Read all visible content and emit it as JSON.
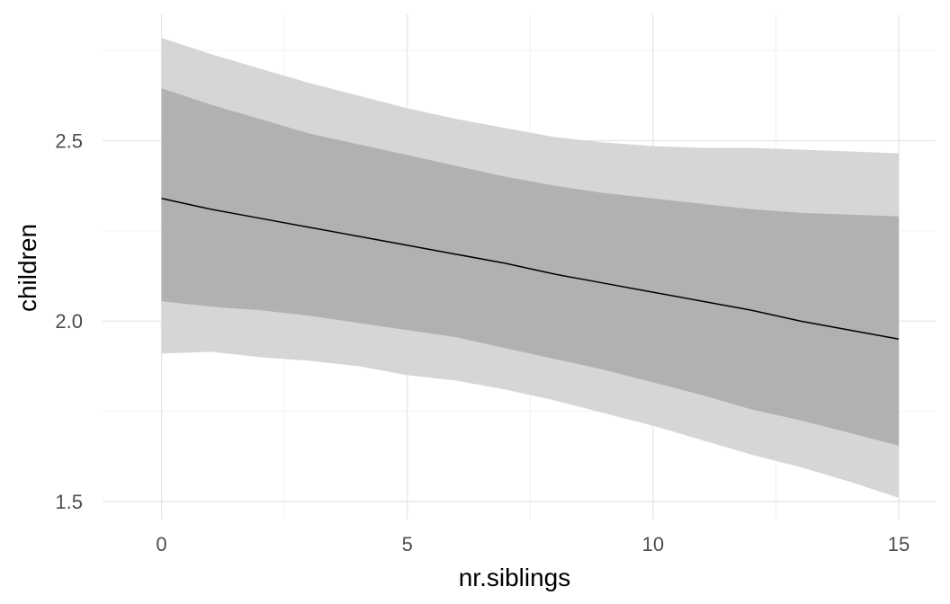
{
  "chart_data": {
    "type": "line",
    "xlabel": "nr.siblings",
    "ylabel": "children",
    "xlim": [
      -1.2,
      15.75
    ],
    "ylim": [
      1.45,
      2.85
    ],
    "x_ticks": [
      0,
      5,
      10,
      15
    ],
    "x_tick_labels": [
      "0",
      "5",
      "10",
      "15"
    ],
    "x_minor_ticks": [
      2.5,
      7.5,
      12.5
    ],
    "y_ticks": [
      1.5,
      2.0,
      2.5
    ],
    "y_tick_labels": [
      "1.5",
      "2.0",
      "2.5"
    ],
    "y_minor_ticks": [
      1.75,
      2.25,
      2.75
    ],
    "grid": true,
    "legend": "none",
    "colors": {
      "outer_band": "#d6d6d6",
      "inner_band": "#b1b1b1",
      "line": "#000000"
    },
    "x": [
      0,
      1,
      2,
      3,
      4,
      5,
      6,
      7,
      8,
      9,
      10,
      11,
      12,
      13,
      14,
      15
    ],
    "series": [
      {
        "values": [
          2.34,
          2.31,
          2.285,
          2.26,
          2.235,
          2.21,
          2.185,
          2.16,
          2.13,
          2.105,
          2.08,
          2.055,
          2.03,
          2.0,
          1.975,
          1.95
        ]
      }
    ],
    "bands": [
      {
        "level": "outer",
        "lower": [
          1.91,
          1.915,
          1.9,
          1.89,
          1.875,
          1.85,
          1.835,
          1.81,
          1.78,
          1.745,
          1.71,
          1.67,
          1.63,
          1.595,
          1.555,
          1.51
        ],
        "upper": [
          2.785,
          2.74,
          2.7,
          2.66,
          2.625,
          2.59,
          2.56,
          2.535,
          2.51,
          2.495,
          2.485,
          2.48,
          2.48,
          2.475,
          2.47,
          2.465
        ]
      },
      {
        "level": "inner",
        "lower": [
          2.055,
          2.04,
          2.03,
          2.015,
          1.995,
          1.975,
          1.955,
          1.925,
          1.895,
          1.865,
          1.83,
          1.795,
          1.755,
          1.725,
          1.69,
          1.655
        ],
        "upper": [
          2.645,
          2.6,
          2.56,
          2.52,
          2.49,
          2.46,
          2.43,
          2.4,
          2.375,
          2.355,
          2.34,
          2.325,
          2.31,
          2.3,
          2.295,
          2.29
        ]
      }
    ]
  }
}
